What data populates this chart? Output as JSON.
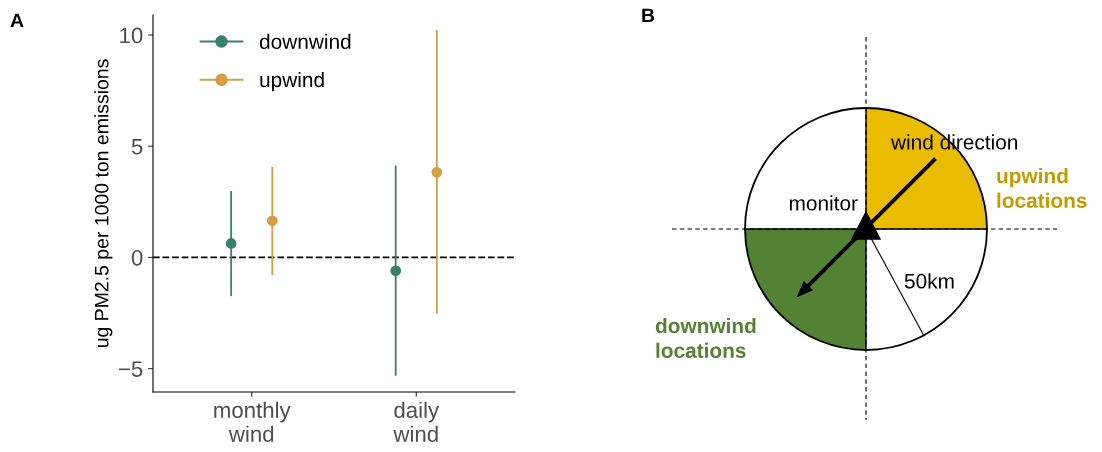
{
  "chart_data": [
    {
      "type": "scatter",
      "title": "A",
      "ylabel": "ug PM2.5 per 1000 ton emissions",
      "categories": [
        "monthly\nwind",
        "daily\nwind"
      ],
      "series": [
        {
          "name": "downwind",
          "color": "#3b7f6e",
          "values": [
            0.63,
            -0.6
          ],
          "errors": [
            [
              -1.74,
              2.99
            ],
            [
              -5.32,
              4.13
            ]
          ]
        },
        {
          "name": "upwind",
          "color": "#d69e45",
          "values": [
            1.65,
            3.83
          ],
          "errors": [
            [
              -0.79,
              4.07
            ],
            [
              -2.53,
              10.22
            ]
          ]
        }
      ],
      "ylim": [
        -6.05,
        10.9
      ],
      "yticks": [
        {
          "value": -5,
          "label": "−5"
        },
        0,
        5,
        10
      ],
      "ref_lines": [
        {
          "axis": "y",
          "value": 0,
          "line_style": "dashed",
          "color": "#000000"
        }
      ],
      "marker": "circle",
      "legend": "top left",
      "grid": false
    },
    {
      "type": "other",
      "title": "B",
      "annotations": [
        "wind direction",
        "monitor",
        "upwind\nlocations",
        "downwind\nlocations",
        "50km"
      ]
    }
  ]
}
